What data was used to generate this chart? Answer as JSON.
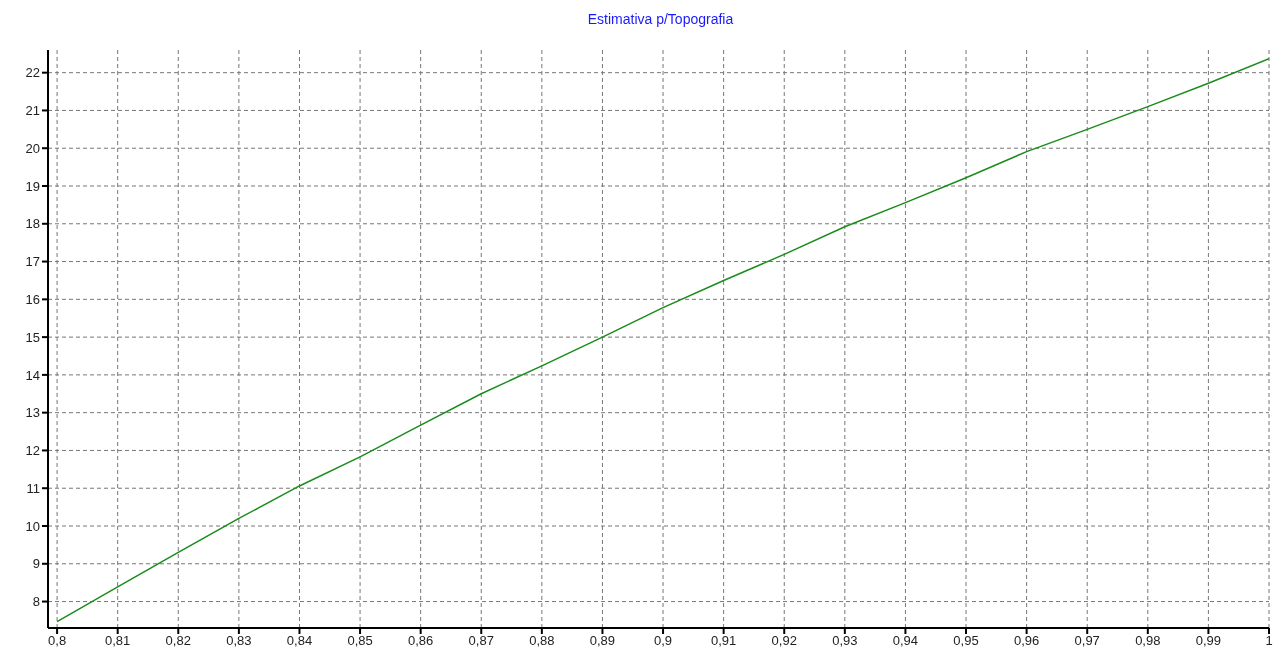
{
  "chart_data": {
    "type": "line",
    "title": "Estimativa p/Topografia",
    "x": [
      0.8,
      0.81,
      0.82,
      0.83,
      0.84,
      0.85,
      0.86,
      0.87,
      0.88,
      0.89,
      0.9,
      0.91,
      0.92,
      0.93,
      0.94,
      0.95,
      0.96,
      0.97,
      0.98,
      0.99,
      1.0
    ],
    "series": [
      {
        "color": "#1a8c1a",
        "values": [
          7.47,
          8.39,
          9.3,
          10.2,
          11.06,
          11.83,
          12.67,
          13.5,
          14.24,
          15.0,
          15.78,
          16.5,
          17.19,
          17.92,
          18.56,
          19.22,
          19.91,
          20.5,
          21.1,
          21.72,
          22.37
        ]
      }
    ],
    "xlim": [
      0.7985,
      1.0
    ],
    "xticks": [
      {
        "value": 0.8,
        "label": "0,8"
      },
      {
        "value": 0.81,
        "label": "0,81"
      },
      {
        "value": 0.82,
        "label": "0,82"
      },
      {
        "value": 0.83,
        "label": "0,83"
      },
      {
        "value": 0.84,
        "label": "0,84"
      },
      {
        "value": 0.85,
        "label": "0,85"
      },
      {
        "value": 0.86,
        "label": "0,86"
      },
      {
        "value": 0.87,
        "label": "0,87"
      },
      {
        "value": 0.88,
        "label": "0,88"
      },
      {
        "value": 0.89,
        "label": "0,89"
      },
      {
        "value": 0.9,
        "label": "0,9"
      },
      {
        "value": 0.91,
        "label": "0,91"
      },
      {
        "value": 0.92,
        "label": "0,92"
      },
      {
        "value": 0.93,
        "label": "0,93"
      },
      {
        "value": 0.94,
        "label": "0,94"
      },
      {
        "value": 0.95,
        "label": "0,95"
      },
      {
        "value": 0.96,
        "label": "0,96"
      },
      {
        "value": 0.97,
        "label": "0,97"
      },
      {
        "value": 0.98,
        "label": "0,98"
      },
      {
        "value": 0.99,
        "label": "0,99"
      },
      {
        "value": 1.0,
        "label": "1"
      }
    ],
    "ylim": [
      7.3,
      22.6
    ],
    "yticks": [
      8,
      9,
      10,
      11,
      12,
      13,
      14,
      15,
      16,
      17,
      18,
      19,
      20,
      21,
      22
    ],
    "grid": true,
    "marker": "none",
    "line_style": "solid",
    "legend": false
  }
}
